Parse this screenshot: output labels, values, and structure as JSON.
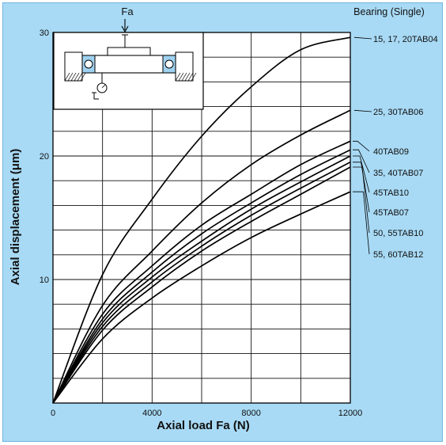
{
  "chart_data": {
    "type": "line",
    "title": "",
    "xlabel": "Axial load Fa (N)",
    "ylabel": "Axial displacement (μm)",
    "xlim": [
      0,
      12000
    ],
    "ylim": [
      0,
      30
    ],
    "x_ticks": [
      "0",
      "4000",
      "8000",
      "12000"
    ],
    "y_ticks": [
      "10",
      "20",
      "30"
    ],
    "grid": true,
    "legend_title": "Bearing (Single)",
    "inset_label": "Fa",
    "x": [
      0,
      2000,
      4000,
      6000,
      8000,
      10000,
      12000
    ],
    "series": [
      {
        "name": "15, 17, 20TAB04",
        "values": [
          0,
          10.4,
          16.5,
          21.6,
          25.6,
          28.6,
          29.6
        ]
      },
      {
        "name": "25, 30TAB06",
        "values": [
          0,
          7.9,
          12.3,
          16.2,
          19.3,
          21.7,
          23.7
        ]
      },
      {
        "name": "40TAB09",
        "values": [
          0,
          7.2,
          11.1,
          14.4,
          16.9,
          19.3,
          21.2
        ]
      },
      {
        "name": "35, 40TAB07",
        "values": [
          0,
          6.8,
          10.6,
          13.7,
          16.2,
          18.5,
          20.5
        ]
      },
      {
        "name": "45TAB10",
        "values": [
          0,
          6.5,
          10.2,
          13.1,
          15.7,
          17.9,
          20.0
        ]
      },
      {
        "name": "45TAB07",
        "values": [
          0,
          6.2,
          9.8,
          12.7,
          15.2,
          17.4,
          19.5
        ]
      },
      {
        "name": "50, 55TAB10",
        "values": [
          0,
          5.9,
          9.4,
          12.3,
          14.7,
          16.9,
          19.1
        ]
      },
      {
        "name": "55, 60TAB12",
        "values": [
          0,
          5.2,
          8.5,
          11.1,
          13.4,
          15.3,
          17.1
        ]
      }
    ]
  }
}
